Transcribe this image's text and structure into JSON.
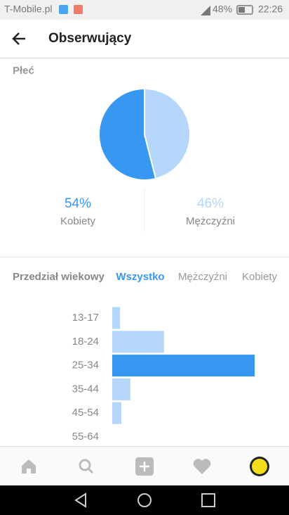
{
  "status_bar": {
    "carrier": "T-Mobile.pl",
    "battery": "48%",
    "time": "22:26"
  },
  "header": {
    "title": "Obserwujący"
  },
  "chart_data": [
    {
      "type": "pie",
      "title": "Płeć",
      "categories": [
        "Kobiety",
        "Mężczyźni"
      ],
      "values": [
        54,
        46
      ],
      "value_labels": [
        "54%",
        "46%"
      ],
      "colors": [
        "#3897f0",
        "#b3d6fa"
      ]
    },
    {
      "type": "bar",
      "title": "Przedział wiekowy",
      "tabs": [
        "Wszystko",
        "Mężczyźni",
        "Kobiety"
      ],
      "active_tab": 0,
      "categories": [
        "13-17",
        "18-24",
        "25-34",
        "35-44",
        "45-54",
        "55-64"
      ],
      "values": [
        3,
        20,
        55,
        7,
        3.5,
        null
      ],
      "colors": [
        "#b3d6fa",
        "#b3d6fa",
        "#3897f0",
        "#b3d6fa",
        "#b3d6fa",
        "#b3d6fa"
      ]
    }
  ]
}
